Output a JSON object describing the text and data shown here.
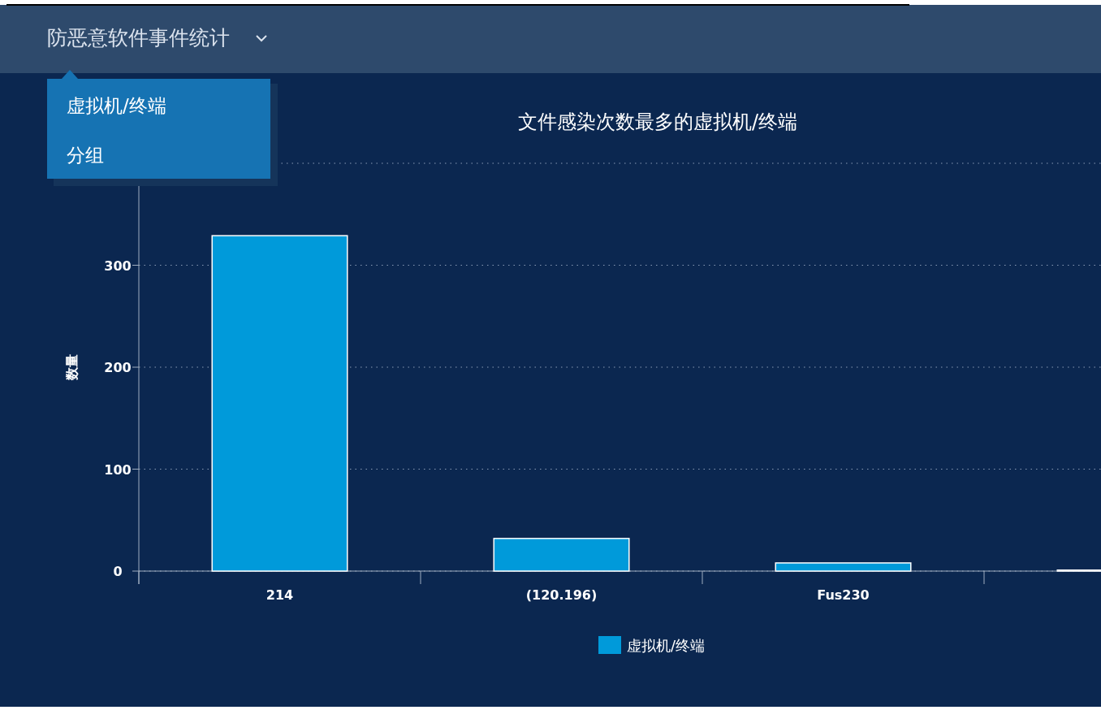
{
  "chart_data": {
    "type": "bar",
    "title": "文件感染次数最多的虚拟机/终端",
    "ylabel": "数量",
    "annotations": [
      "防恶意软件事件统计",
      "虚拟机/终端",
      "分组"
    ],
    "categories": [
      "214",
      "(120.196)",
      "Fus230",
      null
    ],
    "series": [
      {
        "name": "虚拟机/终端",
        "color": "#009ada",
        "values": [
          329,
          32,
          8,
          1
        ]
      }
    ],
    "ylim": [
      0,
      400
    ],
    "yticks": [
      0,
      100,
      200,
      300,
      {
        "value": 400,
        "label": null
      }
    ],
    "grid": "y",
    "legend": "bottom"
  }
}
